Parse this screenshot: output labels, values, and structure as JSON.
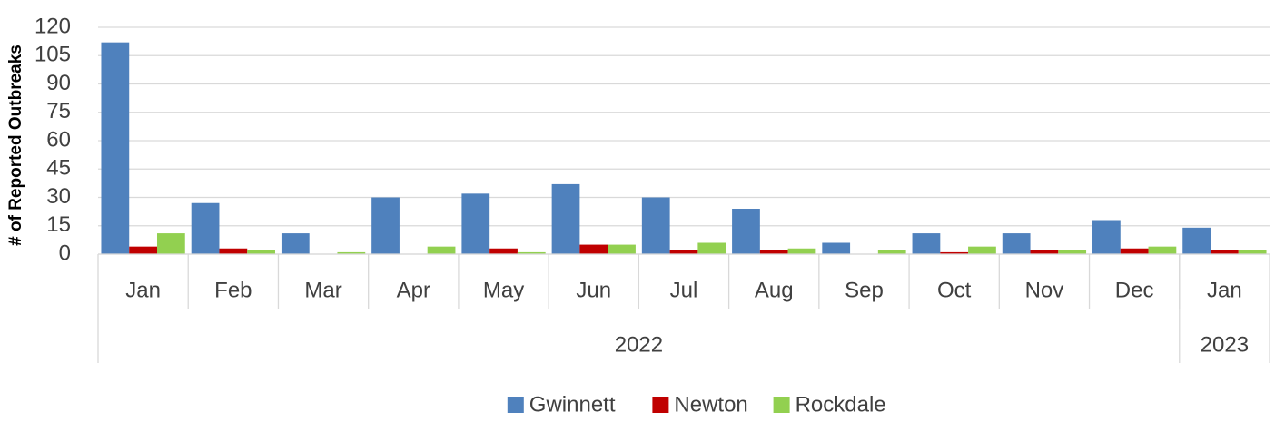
{
  "chart_data": {
    "type": "bar",
    "y_label": "# of Reported Outbreaks",
    "categories": [
      "Jan",
      "Feb",
      "Mar",
      "Apr",
      "May",
      "Jun",
      "Jul",
      "Aug",
      "Sep",
      "Oct",
      "Nov",
      "Dec",
      "Jan"
    ],
    "category_groups": [
      {
        "label": "2022",
        "span": 12
      },
      {
        "label": "2023",
        "span": 1
      }
    ],
    "series": [
      {
        "name": "Gwinnett",
        "color": "#4f81bd",
        "values": [
          112,
          27,
          11,
          30,
          32,
          37,
          30,
          24,
          6,
          11,
          11,
          18,
          14
        ]
      },
      {
        "name": "Newton",
        "color": "#c00000",
        "values": [
          4,
          3,
          0,
          0,
          3,
          5,
          2,
          2,
          0,
          1,
          2,
          3,
          2
        ]
      },
      {
        "name": "Rockdale",
        "color": "#92d050",
        "values": [
          11,
          2,
          1,
          4,
          1,
          5,
          6,
          3,
          2,
          4,
          2,
          4,
          2
        ]
      }
    ],
    "ylim": [
      0,
      120
    ],
    "yticks": [
      0,
      15,
      30,
      45,
      60,
      75,
      90,
      105,
      120
    ],
    "grid": true,
    "legend": "bottom"
  }
}
